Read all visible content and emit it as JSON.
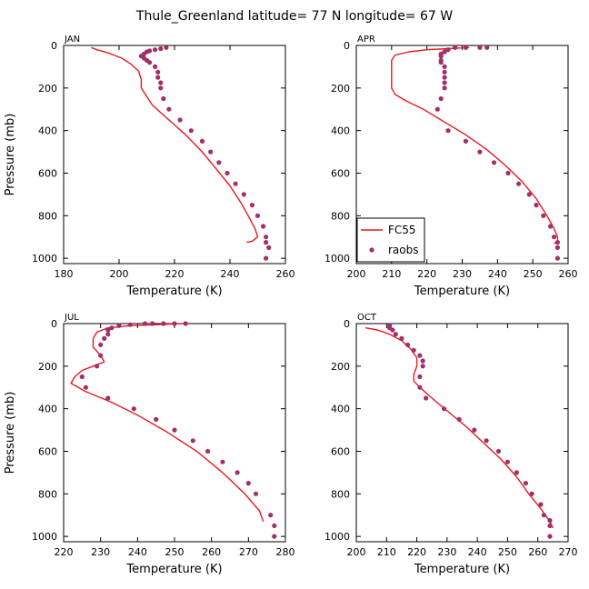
{
  "title": "Thule_Greenland  latitude= 77 N longitude= 67 W",
  "legend": {
    "model_label": "FC55",
    "obs_label": "raobs"
  },
  "colors": {
    "model": "#e8191c",
    "obs": "#a02f6a",
    "axis": "#000000"
  },
  "chart_data": [
    {
      "type": "line",
      "panel": "JAN",
      "xlabel": "Temperature (K)",
      "ylabel": "Pressure (mb)",
      "xlim": [
        180,
        260
      ],
      "ylim": [
        1025,
        0
      ],
      "xticks": [
        180,
        200,
        220,
        240,
        260
      ],
      "yticks": [
        0,
        200,
        400,
        600,
        800,
        1000
      ],
      "model": {
        "name": "FC55",
        "T": [
          190,
          192,
          196,
          201,
          204,
          207,
          208,
          208,
          210,
          212,
          218,
          224,
          230,
          235,
          240,
          244,
          247,
          249,
          250,
          248,
          246
        ],
        "p": [
          10,
          20,
          35,
          60,
          85,
          120,
          160,
          200,
          240,
          280,
          350,
          420,
          500,
          580,
          660,
          740,
          810,
          860,
          900,
          920,
          925
        ]
      },
      "obs": {
        "name": "raobs",
        "T": [
          217,
          215,
          213,
          211,
          210,
          209,
          208,
          209,
          210,
          211,
          213,
          214,
          214,
          215,
          215,
          216,
          218,
          222,
          226,
          230,
          233,
          236,
          239,
          242,
          245,
          248,
          250,
          252,
          253,
          253,
          254,
          253
        ],
        "p": [
          10,
          15,
          20,
          25,
          30,
          40,
          50,
          60,
          70,
          80,
          100,
          125,
          150,
          175,
          200,
          250,
          300,
          350,
          400,
          450,
          500,
          550,
          600,
          650,
          700,
          750,
          800,
          850,
          900,
          925,
          950,
          1000
        ]
      }
    },
    {
      "type": "line",
      "panel": "APR",
      "xlabel": "Temperature (K)",
      "ylabel": "",
      "xlim": [
        200,
        260
      ],
      "ylim": [
        1025,
        0
      ],
      "xticks": [
        200,
        210,
        220,
        230,
        240,
        250,
        260
      ],
      "yticks": [
        0,
        200,
        400,
        600,
        800,
        1000
      ],
      "model": {
        "name": "FC55",
        "T": [
          232,
          226,
          220,
          215,
          211,
          210,
          210,
          210,
          210,
          211,
          214,
          219,
          225,
          231,
          237,
          242,
          247,
          251,
          254,
          256,
          257,
          257,
          256
        ],
        "p": [
          10,
          15,
          20,
          30,
          45,
          70,
          100,
          150,
          200,
          230,
          260,
          300,
          360,
          420,
          490,
          560,
          640,
          720,
          800,
          860,
          900,
          920,
          930
        ]
      },
      "obs": {
        "name": "raobs",
        "T": [
          237,
          235,
          231,
          228,
          226,
          225,
          224,
          224,
          224,
          224,
          225,
          225,
          225,
          225,
          225,
          224,
          223,
          226,
          231,
          235,
          239,
          243,
          246,
          249,
          251,
          253,
          255,
          256,
          257,
          257,
          257
        ],
        "p": [
          10,
          10,
          10,
          10,
          20,
          30,
          40,
          50,
          70,
          80,
          100,
          125,
          150,
          175,
          200,
          250,
          300,
          400,
          450,
          500,
          550,
          600,
          650,
          700,
          750,
          800,
          850,
          900,
          925,
          950,
          1000
        ]
      }
    },
    {
      "type": "line",
      "panel": "JUL",
      "xlabel": "Temperature (K)",
      "ylabel": "Pressure (mb)",
      "xlim": [
        220,
        280
      ],
      "ylim": [
        1025,
        0
      ],
      "xticks": [
        220,
        230,
        240,
        250,
        260,
        270,
        280
      ],
      "yticks": [
        0,
        200,
        400,
        600,
        800,
        1000
      ],
      "model": {
        "name": "FC55",
        "T": [
          252,
          245,
          238,
          232,
          229,
          228,
          228,
          230,
          231,
          228,
          225,
          223,
          222,
          226,
          233,
          240,
          248,
          256,
          263,
          269,
          273,
          274
        ],
        "p": [
          0,
          5,
          10,
          20,
          40,
          70,
          110,
          150,
          180,
          200,
          220,
          250,
          280,
          320,
          370,
          430,
          510,
          600,
          700,
          800,
          880,
          930
        ]
      },
      "obs": {
        "name": "raobs",
        "T": [
          253,
          250,
          247,
          244,
          242,
          238,
          235,
          233,
          232,
          232,
          231,
          230,
          230,
          229,
          225,
          226,
          232,
          239,
          245,
          250,
          255,
          259,
          263,
          267,
          270,
          272,
          276,
          277,
          277
        ],
        "p": [
          0,
          0,
          0,
          0,
          0,
          5,
          10,
          20,
          30,
          50,
          70,
          100,
          150,
          200,
          250,
          300,
          350,
          400,
          450,
          500,
          550,
          600,
          650,
          700,
          750,
          800,
          900,
          950,
          1000
        ]
      }
    },
    {
      "type": "line",
      "panel": "OCT",
      "xlabel": "Temperature (K)",
      "ylabel": "",
      "xlim": [
        200,
        270
      ],
      "ylim": [
        1025,
        0
      ],
      "xticks": [
        200,
        210,
        220,
        230,
        240,
        250,
        260,
        270
      ],
      "yticks": [
        0,
        200,
        400,
        600,
        800,
        1000
      ],
      "model": {
        "name": "FC55",
        "T": [
          203,
          207,
          211,
          215,
          218,
          220,
          220,
          219,
          219,
          221,
          225,
          230,
          236,
          242,
          248,
          253,
          257,
          261,
          264,
          265
        ],
        "p": [
          20,
          30,
          50,
          80,
          120,
          160,
          200,
          240,
          270,
          300,
          350,
          410,
          480,
          560,
          640,
          720,
          800,
          870,
          930,
          960
        ]
      },
      "obs": {
        "name": "raobs",
        "T": [
          211,
          211,
          212,
          213,
          215,
          217,
          219,
          221,
          222,
          222,
          221,
          221,
          223,
          229,
          234,
          239,
          243,
          247,
          250,
          253,
          256,
          258,
          261,
          262,
          264,
          264,
          264
        ],
        "p": [
          10,
          20,
          30,
          50,
          70,
          100,
          125,
          150,
          175,
          200,
          250,
          300,
          350,
          400,
          450,
          500,
          550,
          600,
          650,
          700,
          750,
          800,
          850,
          900,
          925,
          950,
          1000
        ]
      }
    }
  ]
}
